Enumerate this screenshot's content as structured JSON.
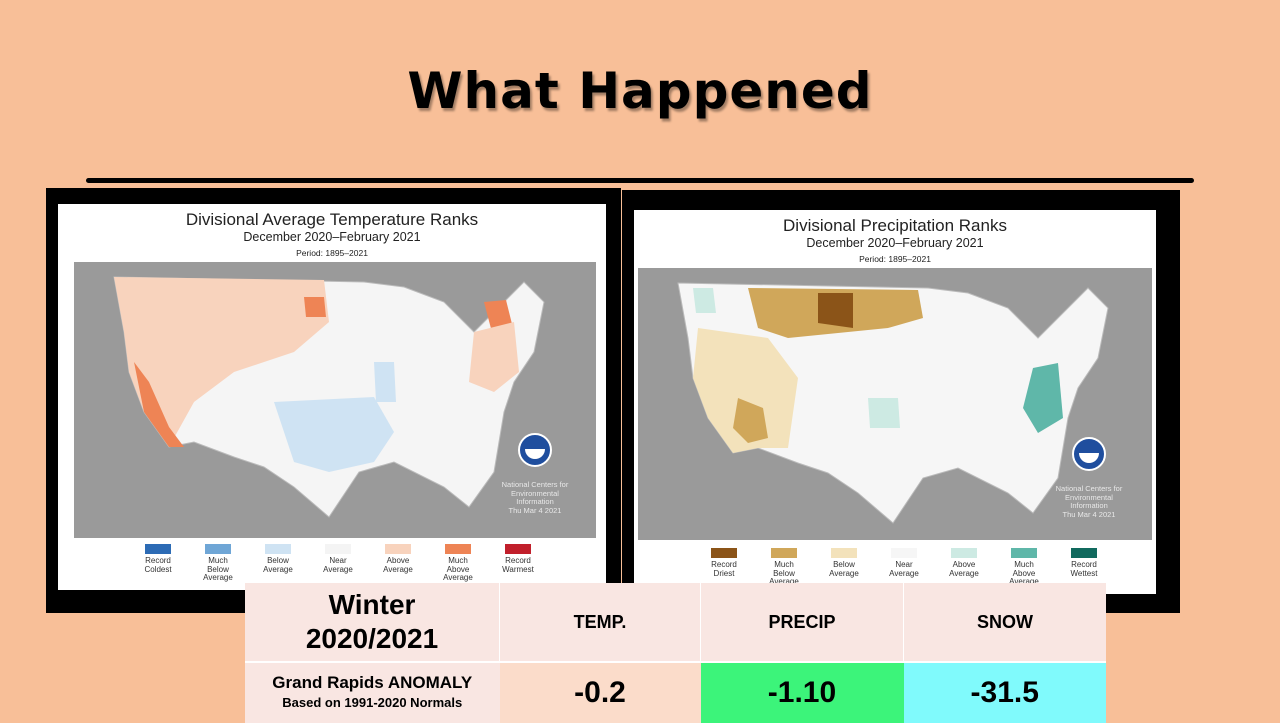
{
  "slide": {
    "title": "What Happened"
  },
  "temp_map": {
    "title": "Divisional Average Temperature Ranks",
    "subtitle": "December 2020–February 2021",
    "period": "Period: 1895–2021",
    "legend": [
      {
        "label": "Record\nColdest",
        "color": "#2c6bb5"
      },
      {
        "label": "Much\nBelow\nAverage",
        "color": "#6fa6d6"
      },
      {
        "label": "Below\nAverage",
        "color": "#cfe3f3"
      },
      {
        "label": "Near\nAverage",
        "color": "#f4f4f4"
      },
      {
        "label": "Above\nAverage",
        "color": "#f8d3bd"
      },
      {
        "label": "Much\nAbove\nAverage",
        "color": "#ee8455"
      },
      {
        "label": "Record\nWarmest",
        "color": "#c11f2b"
      }
    ],
    "credit": "National Centers for\nEnvironmental\nInformation\nThu Mar 4 2021"
  },
  "precip_map": {
    "title": "Divisional Precipitation Ranks",
    "subtitle": "December 2020–February 2021",
    "period": "Period: 1895–2021",
    "legend": [
      {
        "label": "Record\nDriest",
        "color": "#8b5418"
      },
      {
        "label": "Much\nBelow\nAverage",
        "color": "#d0a75a"
      },
      {
        "label": "Below\nAverage",
        "color": "#f3e2bb"
      },
      {
        "label": "Near\nAverage",
        "color": "#f6f6f6"
      },
      {
        "label": "Above\nAverage",
        "color": "#cdeae3"
      },
      {
        "label": "Much\nAbove\nAverage",
        "color": "#5fb7a9"
      },
      {
        "label": "Record\nWettest",
        "color": "#116a5e"
      }
    ],
    "credit": "National Centers for\nEnvironmental\nInformation\nThu Mar 4 2021"
  },
  "table": {
    "header_line1": "Winter",
    "header_line2": "2020/2021",
    "columns": [
      "TEMP.",
      "PRECIP",
      "SNOW"
    ],
    "row_label": "Grand Rapids ANOMALY",
    "row_sublabel": "Based on 1991-2020 Normals",
    "values": [
      "-0.2",
      "-1.10",
      "-31.5"
    ],
    "value_colors": [
      "#fbdcca",
      "#3cf47a",
      "#80fafc"
    ]
  }
}
